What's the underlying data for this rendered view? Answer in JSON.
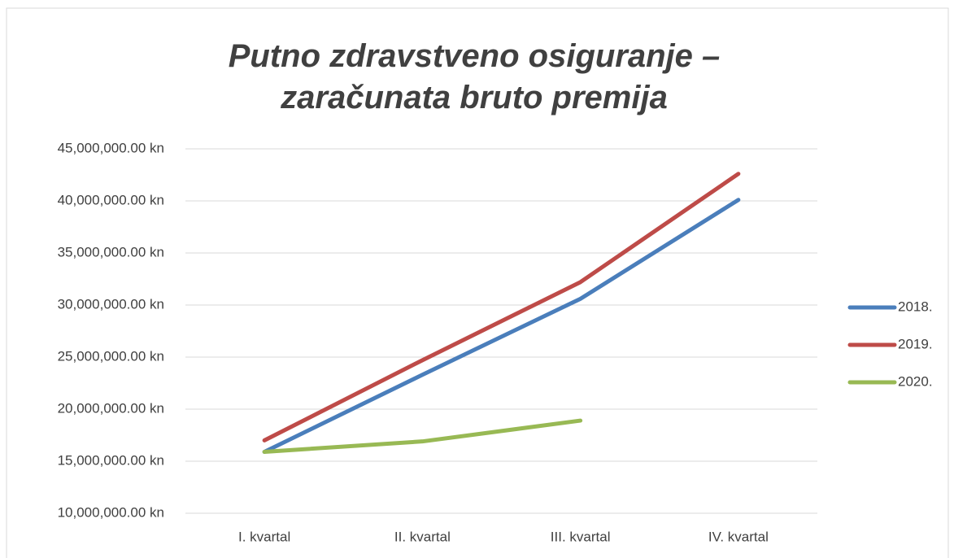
{
  "chart_data": {
    "type": "line",
    "title": "Putno zdravstveno osiguranje – zaračunata bruto premija",
    "categories": [
      "I. kvartal",
      "II. kvartal",
      "III. kvartal",
      "IV. kvartal"
    ],
    "series": [
      {
        "name": "2018.",
        "color": "#4a7ebb",
        "values": [
          15900000,
          23300000,
          30600000,
          40100000
        ]
      },
      {
        "name": "2019.",
        "color": "#be4b48",
        "values": [
          17000000,
          24700000,
          32200000,
          42600000
        ]
      },
      {
        "name": "2020.",
        "color": "#98b954",
        "values": [
          15900000,
          16900000,
          18900000,
          null
        ]
      }
    ],
    "ylim": [
      10000000,
      45000000
    ],
    "yticks": [
      {
        "value": 10000000,
        "label": "10,000,000.00 kn"
      },
      {
        "value": 15000000,
        "label": "15,000,000.00 kn"
      },
      {
        "value": 20000000,
        "label": "20,000,000.00 kn"
      },
      {
        "value": 25000000,
        "label": "25,000,000.00 kn"
      },
      {
        "value": 30000000,
        "label": "30,000,000.00 kn"
      },
      {
        "value": 35000000,
        "label": "35,000,000.00 kn"
      },
      {
        "value": 40000000,
        "label": "40,000,000.00 kn"
      },
      {
        "value": 45000000,
        "label": "45,000,000.00 kn"
      }
    ],
    "grid": true,
    "legend": "right"
  }
}
